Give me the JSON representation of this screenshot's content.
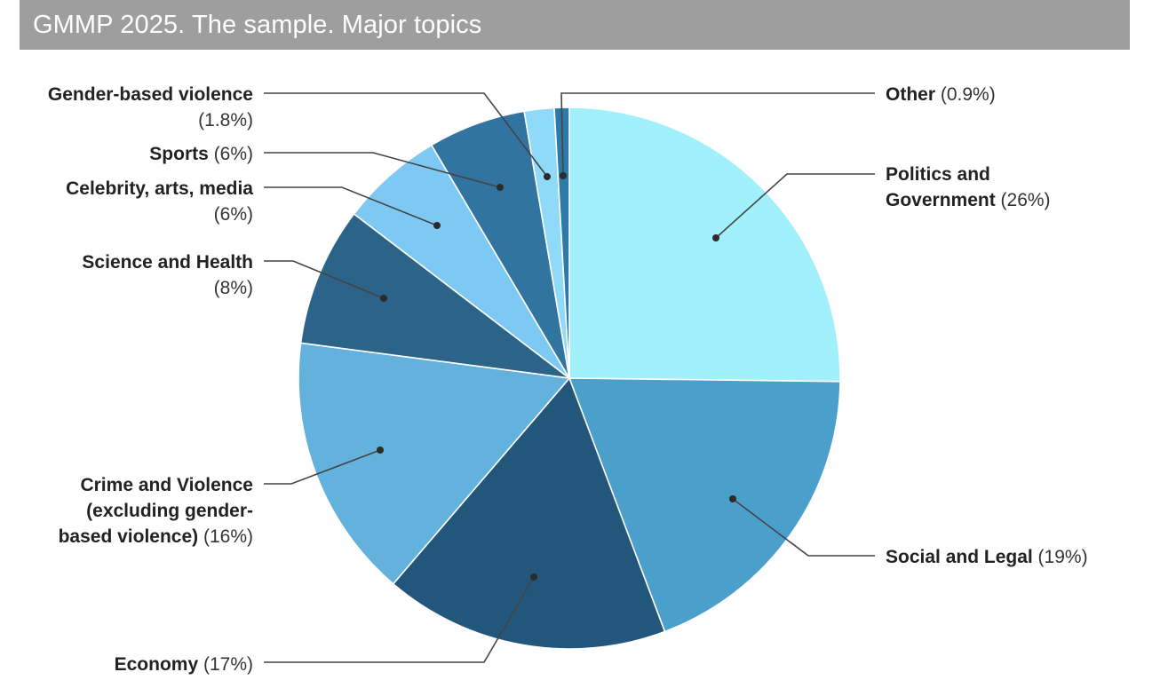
{
  "title": "GMMP 2025. The sample. Major topics",
  "chart_data": {
    "type": "pie",
    "title": "GMMP 2025. The sample. Major topics",
    "start": "12 o'clock",
    "direction": "clockwise",
    "slices": [
      {
        "id": "politics",
        "name_lines": [
          "Politics and",
          "Government"
        ],
        "pct_label": "(26%)",
        "value": 25.5,
        "color": "#a3f0fd"
      },
      {
        "id": "social",
        "name_lines": [
          "Social and Legal"
        ],
        "pct_label": "(19%)",
        "value": 19.3,
        "color": "#4a9fcb"
      },
      {
        "id": "economy",
        "name_lines": [
          "Economy"
        ],
        "pct_label": "(17%)",
        "value": 17.2,
        "color": "#22567b"
      },
      {
        "id": "crime",
        "name_lines": [
          "Crime and Violence",
          "(excluding gender-",
          "based violence)"
        ],
        "pct_label": "(16%)",
        "value": 16.0,
        "color": "#62b2dd"
      },
      {
        "id": "science",
        "name_lines": [
          "Science and Health"
        ],
        "pct_label": "(8%)",
        "value": 8.4,
        "color": "#2b6389"
      },
      {
        "id": "celebrity",
        "name_lines": [
          "Celebrity, arts, media"
        ],
        "pct_label": "(6%)",
        "value": 6.2,
        "color": "#7ec9f3"
      },
      {
        "id": "sports",
        "name_lines": [
          "Sports"
        ],
        "pct_label": "(6%)",
        "value": 5.9,
        "color": "#3174a0"
      },
      {
        "id": "gbv",
        "name_lines": [
          "Gender-based violence"
        ],
        "pct_label": "(1.8%)",
        "value": 1.8,
        "color": "#8fdaf8"
      },
      {
        "id": "other",
        "name_lines": [
          "Other"
        ],
        "pct_label": "(0.9%)",
        "value": 0.9,
        "color": "#2d79a8"
      }
    ]
  }
}
